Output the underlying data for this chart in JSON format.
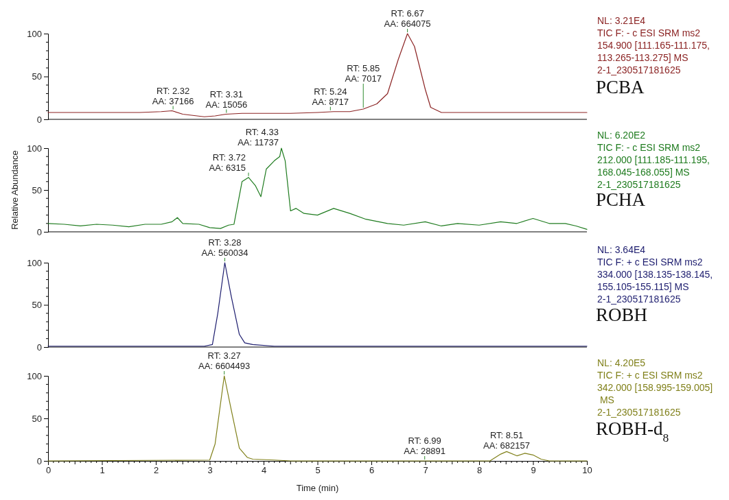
{
  "chart_data": [
    {
      "type": "line",
      "title": "PCBA",
      "xlim": [
        0,
        10
      ],
      "ylim": [
        0,
        100
      ],
      "yticks": [
        0,
        50,
        100
      ],
      "tick_labels": "y",
      "x": [
        0,
        1.7,
        2.1,
        2.3,
        2.5,
        2.9,
        3.1,
        3.3,
        3.6,
        4.5,
        5.0,
        5.3,
        5.6,
        5.85,
        6.1,
        6.3,
        6.5,
        6.67,
        6.8,
        7.0,
        7.1,
        7.3,
        8,
        10
      ],
      "series": [
        {
          "color": "#8b2323",
          "values": [
            8,
            8,
            9,
            10,
            6,
            3,
            4,
            6,
            7,
            7,
            8,
            9,
            9,
            12,
            18,
            30,
            70,
            100,
            85,
            35,
            14,
            8,
            8,
            8
          ]
        }
      ],
      "annotations": [
        {
          "text": "RT: 2.32\nAA: 37166",
          "x": 2.32,
          "y": 10
        },
        {
          "text": "RT: 3.31\nAA: 15056",
          "x": 3.31,
          "y": 6
        },
        {
          "text": "RT: 5.24\nAA: 8717",
          "x": 5.24,
          "y": 9
        },
        {
          "text": "RT: 5.85\nAA: 7017",
          "x": 5.85,
          "y": 12
        },
        {
          "text": "RT: 6.67\nAA: 664075",
          "x": 6.67,
          "y": 100
        },
        "NL: 3.21E4\nTIC F: - c ESI SRM ms2\n154.900 [111.165-111.175,\n113.265-113.275] MS\n2-1_230517181625"
      ]
    },
    {
      "type": "line",
      "title": "PCHA",
      "ylabel": "Relative Abundance",
      "xlim": [
        0,
        10
      ],
      "ylim": [
        0,
        100
      ],
      "yticks": [
        0,
        50,
        100
      ],
      "tick_labels": "y",
      "x": [
        0,
        0.3,
        0.6,
        0.9,
        1.2,
        1.5,
        1.8,
        2.1,
        2.3,
        2.4,
        2.5,
        2.8,
        3.0,
        3.2,
        3.35,
        3.45,
        3.6,
        3.72,
        3.85,
        3.95,
        4.05,
        4.2,
        4.3,
        4.33,
        4.4,
        4.45,
        4.5,
        4.6,
        4.75,
        5.0,
        5.3,
        5.6,
        5.9,
        6.3,
        6.6,
        7.0,
        7.3,
        7.6,
        8.0,
        8.4,
        8.7,
        9.0,
        9.3,
        9.6,
        9.8,
        10
      ],
      "series": [
        {
          "color": "#1e7b1e",
          "values": [
            10,
            9,
            7,
            9,
            8,
            6,
            9,
            9,
            12,
            17,
            10,
            9,
            5,
            4,
            8,
            9,
            60,
            65,
            55,
            42,
            75,
            85,
            90,
            100,
            85,
            55,
            25,
            28,
            22,
            20,
            28,
            22,
            15,
            10,
            8,
            12,
            7,
            10,
            8,
            12,
            10,
            16,
            10,
            10,
            7,
            3
          ]
        }
      ],
      "annotations": [
        {
          "text": "RT: 3.72\nAA: 6315",
          "x": 3.72,
          "y": 65
        },
        {
          "text": "RT: 4.33\nAA: 11737",
          "x": 4.33,
          "y": 100
        },
        "NL: 6.20E2\nTIC F: - c ESI SRM ms2\n212.000 [111.185-111.195,\n168.045-168.055] MS\n2-1_230517181625"
      ]
    },
    {
      "type": "line",
      "title": "ROBH",
      "xlim": [
        0,
        10
      ],
      "ylim": [
        0,
        100
      ],
      "yticks": [
        0,
        50,
        100
      ],
      "tick_labels": "y",
      "x": [
        0,
        2.9,
        3.05,
        3.15,
        3.28,
        3.4,
        3.55,
        3.65,
        3.8,
        4.2,
        10
      ],
      "series": [
        {
          "color": "#1c1c6e",
          "values": [
            1,
            1,
            3,
            40,
            100,
            60,
            15,
            5,
            3,
            1,
            1
          ]
        }
      ],
      "annotations": [
        {
          "text": "RT: 3.28\nAA: 560034",
          "x": 3.28,
          "y": 100
        },
        "NL: 3.64E4\nTIC F: + c ESI SRM ms2\n334.000 [138.135-138.145,\n155.105-155.115] MS\n2-1_230517181625"
      ]
    },
    {
      "type": "line",
      "title": "ROBH-d$_{8}$",
      "xlabel": "Time (min)",
      "xlim": [
        0,
        10
      ],
      "xticks": [
        0,
        1,
        2,
        3,
        4,
        5,
        6,
        7,
        8,
        9,
        10
      ],
      "ylim": [
        0,
        100
      ],
      "yticks": [
        0,
        50,
        100
      ],
      "x": [
        0,
        3.0,
        3.1,
        3.27,
        3.4,
        3.55,
        3.7,
        3.8,
        4.2,
        4.5,
        8.2,
        8.4,
        8.51,
        8.7,
        8.85,
        9.0,
        9.15,
        9.3,
        10
      ],
      "series": [
        {
          "color": "#80801a",
          "values": [
            0,
            1,
            20,
            100,
            60,
            15,
            4,
            2,
            1,
            0,
            0,
            8,
            11,
            6,
            9,
            7,
            2,
            0,
            0
          ]
        }
      ],
      "annotations": [
        {
          "text": "RT: 3.27\nAA: 6604493",
          "x": 3.27,
          "y": 100
        },
        {
          "text": "RT: 6.99\nAA: 28891",
          "x": 6.99,
          "y": 0
        },
        {
          "text": "RT: 8.51\nAA: 682157",
          "x": 8.51,
          "y": 11
        },
        "NL: 4.20E5\nTIC F: + c ESI SRM ms2\n342.000 [158.995-159.005]\n MS\n2-1_230517181625"
      ]
    }
  ]
}
